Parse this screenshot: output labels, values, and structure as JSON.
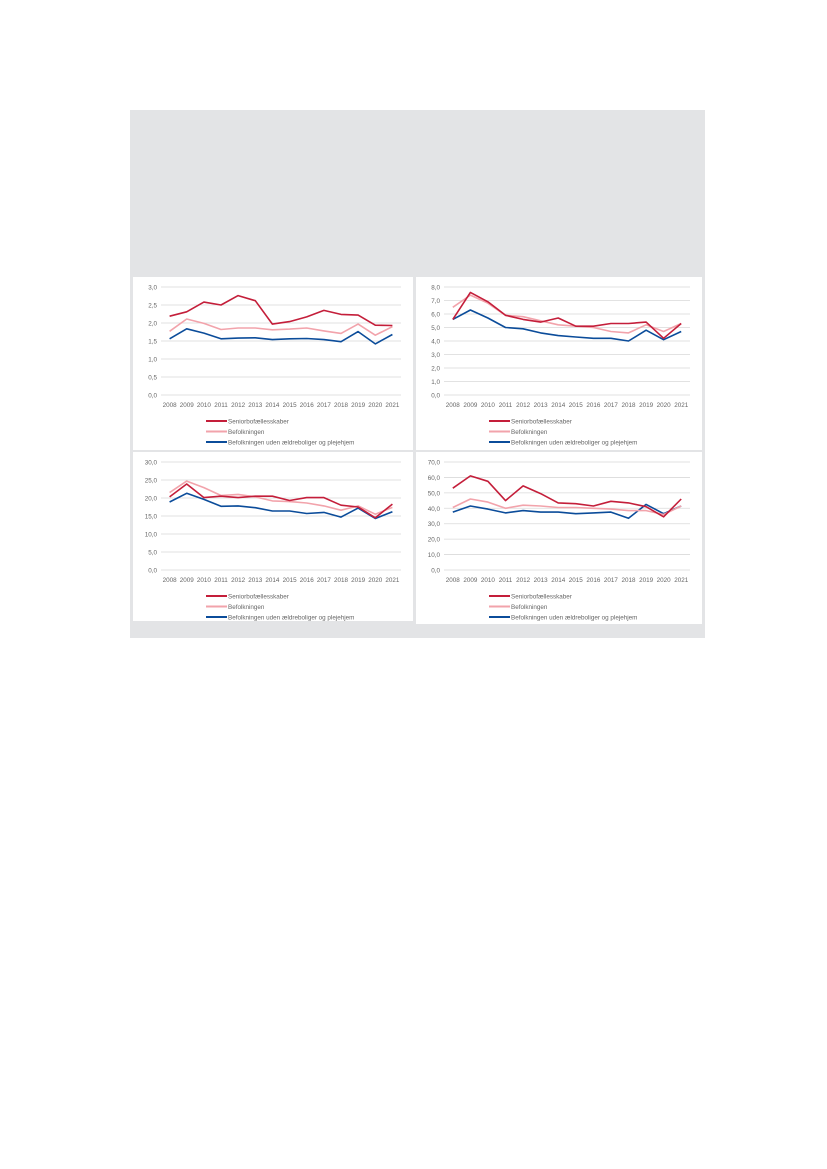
{
  "colors": {
    "senior": "#c41e3a",
    "befolkning": "#f2a3ab",
    "uden": "#0b4c9a",
    "grid": "#d9d9d9"
  },
  "chart_data": [
    {
      "type": "line",
      "title": "",
      "xlabel": "",
      "ylabel": "",
      "ylim": [
        0,
        3
      ],
      "ystep": 0.5,
      "grid": true,
      "legend": "bottom",
      "categories": [
        "2008",
        "2009",
        "2010",
        "2011",
        "2012",
        "2013",
        "2014",
        "2015",
        "2016",
        "2017",
        "2018",
        "2019",
        "2020",
        "2021"
      ],
      "series": [
        {
          "name": "Seniorbofællesskaber",
          "key": "senior",
          "values": [
            2.19,
            2.31,
            2.58,
            2.5,
            2.76,
            2.62,
            1.97,
            2.04,
            2.17,
            2.35,
            2.24,
            2.22,
            1.94,
            1.93
          ]
        },
        {
          "name": "Befolkningen",
          "key": "befolkning",
          "values": [
            1.77,
            2.11,
            1.99,
            1.82,
            1.86,
            1.86,
            1.81,
            1.83,
            1.86,
            1.78,
            1.71,
            1.97,
            1.66,
            1.9
          ]
        },
        {
          "name": "Befolkningen uden ældreboliger og plejehjem",
          "key": "uden",
          "values": [
            1.56,
            1.84,
            1.72,
            1.56,
            1.58,
            1.59,
            1.54,
            1.56,
            1.57,
            1.54,
            1.48,
            1.76,
            1.42,
            1.68
          ]
        }
      ]
    },
    {
      "type": "line",
      "title": "",
      "xlabel": "",
      "ylabel": "",
      "ylim": [
        0,
        8
      ],
      "ystep": 1,
      "grid": true,
      "legend": "bottom",
      "categories": [
        "2008",
        "2009",
        "2010",
        "2011",
        "2012",
        "2013",
        "2014",
        "2015",
        "2016",
        "2017",
        "2018",
        "2019",
        "2020",
        "2021"
      ],
      "series": [
        {
          "name": "Seniorbofællesskaber",
          "key": "senior",
          "values": [
            5.6,
            7.6,
            6.9,
            5.9,
            5.6,
            5.4,
            5.7,
            5.1,
            5.1,
            5.3,
            5.3,
            5.4,
            4.2,
            5.3
          ]
        },
        {
          "name": "Befolkningen",
          "key": "befolkning",
          "values": [
            6.5,
            7.4,
            6.8,
            5.9,
            5.8,
            5.5,
            5.2,
            5.1,
            5.0,
            4.7,
            4.6,
            5.2,
            4.7,
            5.3
          ]
        },
        {
          "name": "Befolkningen uden ældreboliger og plejehjem",
          "key": "uden",
          "values": [
            5.6,
            6.3,
            5.7,
            5.0,
            4.9,
            4.6,
            4.4,
            4.3,
            4.2,
            4.2,
            4.0,
            4.8,
            4.1,
            4.7
          ]
        }
      ]
    },
    {
      "type": "line",
      "title": "",
      "xlabel": "",
      "ylabel": "",
      "ylim": [
        0,
        30
      ],
      "ystep": 5,
      "grid": true,
      "legend": "bottom",
      "categories": [
        "2008",
        "2009",
        "2010",
        "2011",
        "2012",
        "2013",
        "2014",
        "2015",
        "2016",
        "2017",
        "2018",
        "2019",
        "2020",
        "2021"
      ],
      "series": [
        {
          "name": "Seniorbofællesskaber",
          "key": "senior",
          "values": [
            20.3,
            23.9,
            20.1,
            20.5,
            20.1,
            20.5,
            20.5,
            19.3,
            20.1,
            20.1,
            18.0,
            17.5,
            14.5,
            18.3
          ]
        },
        {
          "name": "Befolkningen",
          "key": "befolkning",
          "values": [
            21.5,
            24.7,
            22.9,
            20.7,
            21.0,
            20.3,
            19.2,
            19.0,
            18.6,
            17.8,
            16.6,
            17.8,
            15.5,
            17.4
          ]
        },
        {
          "name": "Befolkningen uden ældreboliger og plejehjem",
          "key": "uden",
          "values": [
            18.9,
            21.3,
            19.6,
            17.7,
            17.8,
            17.3,
            16.4,
            16.4,
            15.7,
            16.0,
            14.7,
            17.2,
            14.3,
            16.2
          ]
        }
      ]
    },
    {
      "type": "line",
      "title": "",
      "xlabel": "",
      "ylabel": "",
      "ylim": [
        0,
        70
      ],
      "ystep": 10,
      "grid": true,
      "legend": "bottom",
      "categories": [
        "2008",
        "2009",
        "2010",
        "2011",
        "2012",
        "2013",
        "2014",
        "2015",
        "2016",
        "2017",
        "2018",
        "2019",
        "2020",
        "2021"
      ],
      "series": [
        {
          "name": "Seniorbofællesskaber",
          "key": "senior",
          "values": [
            53,
            61,
            57.5,
            45,
            54.5,
            49.5,
            43.5,
            43,
            41.5,
            44.5,
            43.5,
            41,
            34.5,
            46
          ]
        },
        {
          "name": "Befolkningen",
          "key": "befolkning",
          "values": [
            40.5,
            46,
            44,
            40,
            42,
            41.5,
            40.5,
            40.5,
            40,
            39.5,
            38.5,
            38.5,
            36,
            41.5
          ]
        },
        {
          "name": "Befolkningen uden ældreboliger og plejehjem",
          "key": "uden",
          "values": [
            37.5,
            41.5,
            39.5,
            37,
            38.5,
            37.5,
            37.5,
            36.5,
            37,
            37.5,
            33.5,
            42.5,
            36.5,
            41.5
          ]
        }
      ]
    }
  ]
}
